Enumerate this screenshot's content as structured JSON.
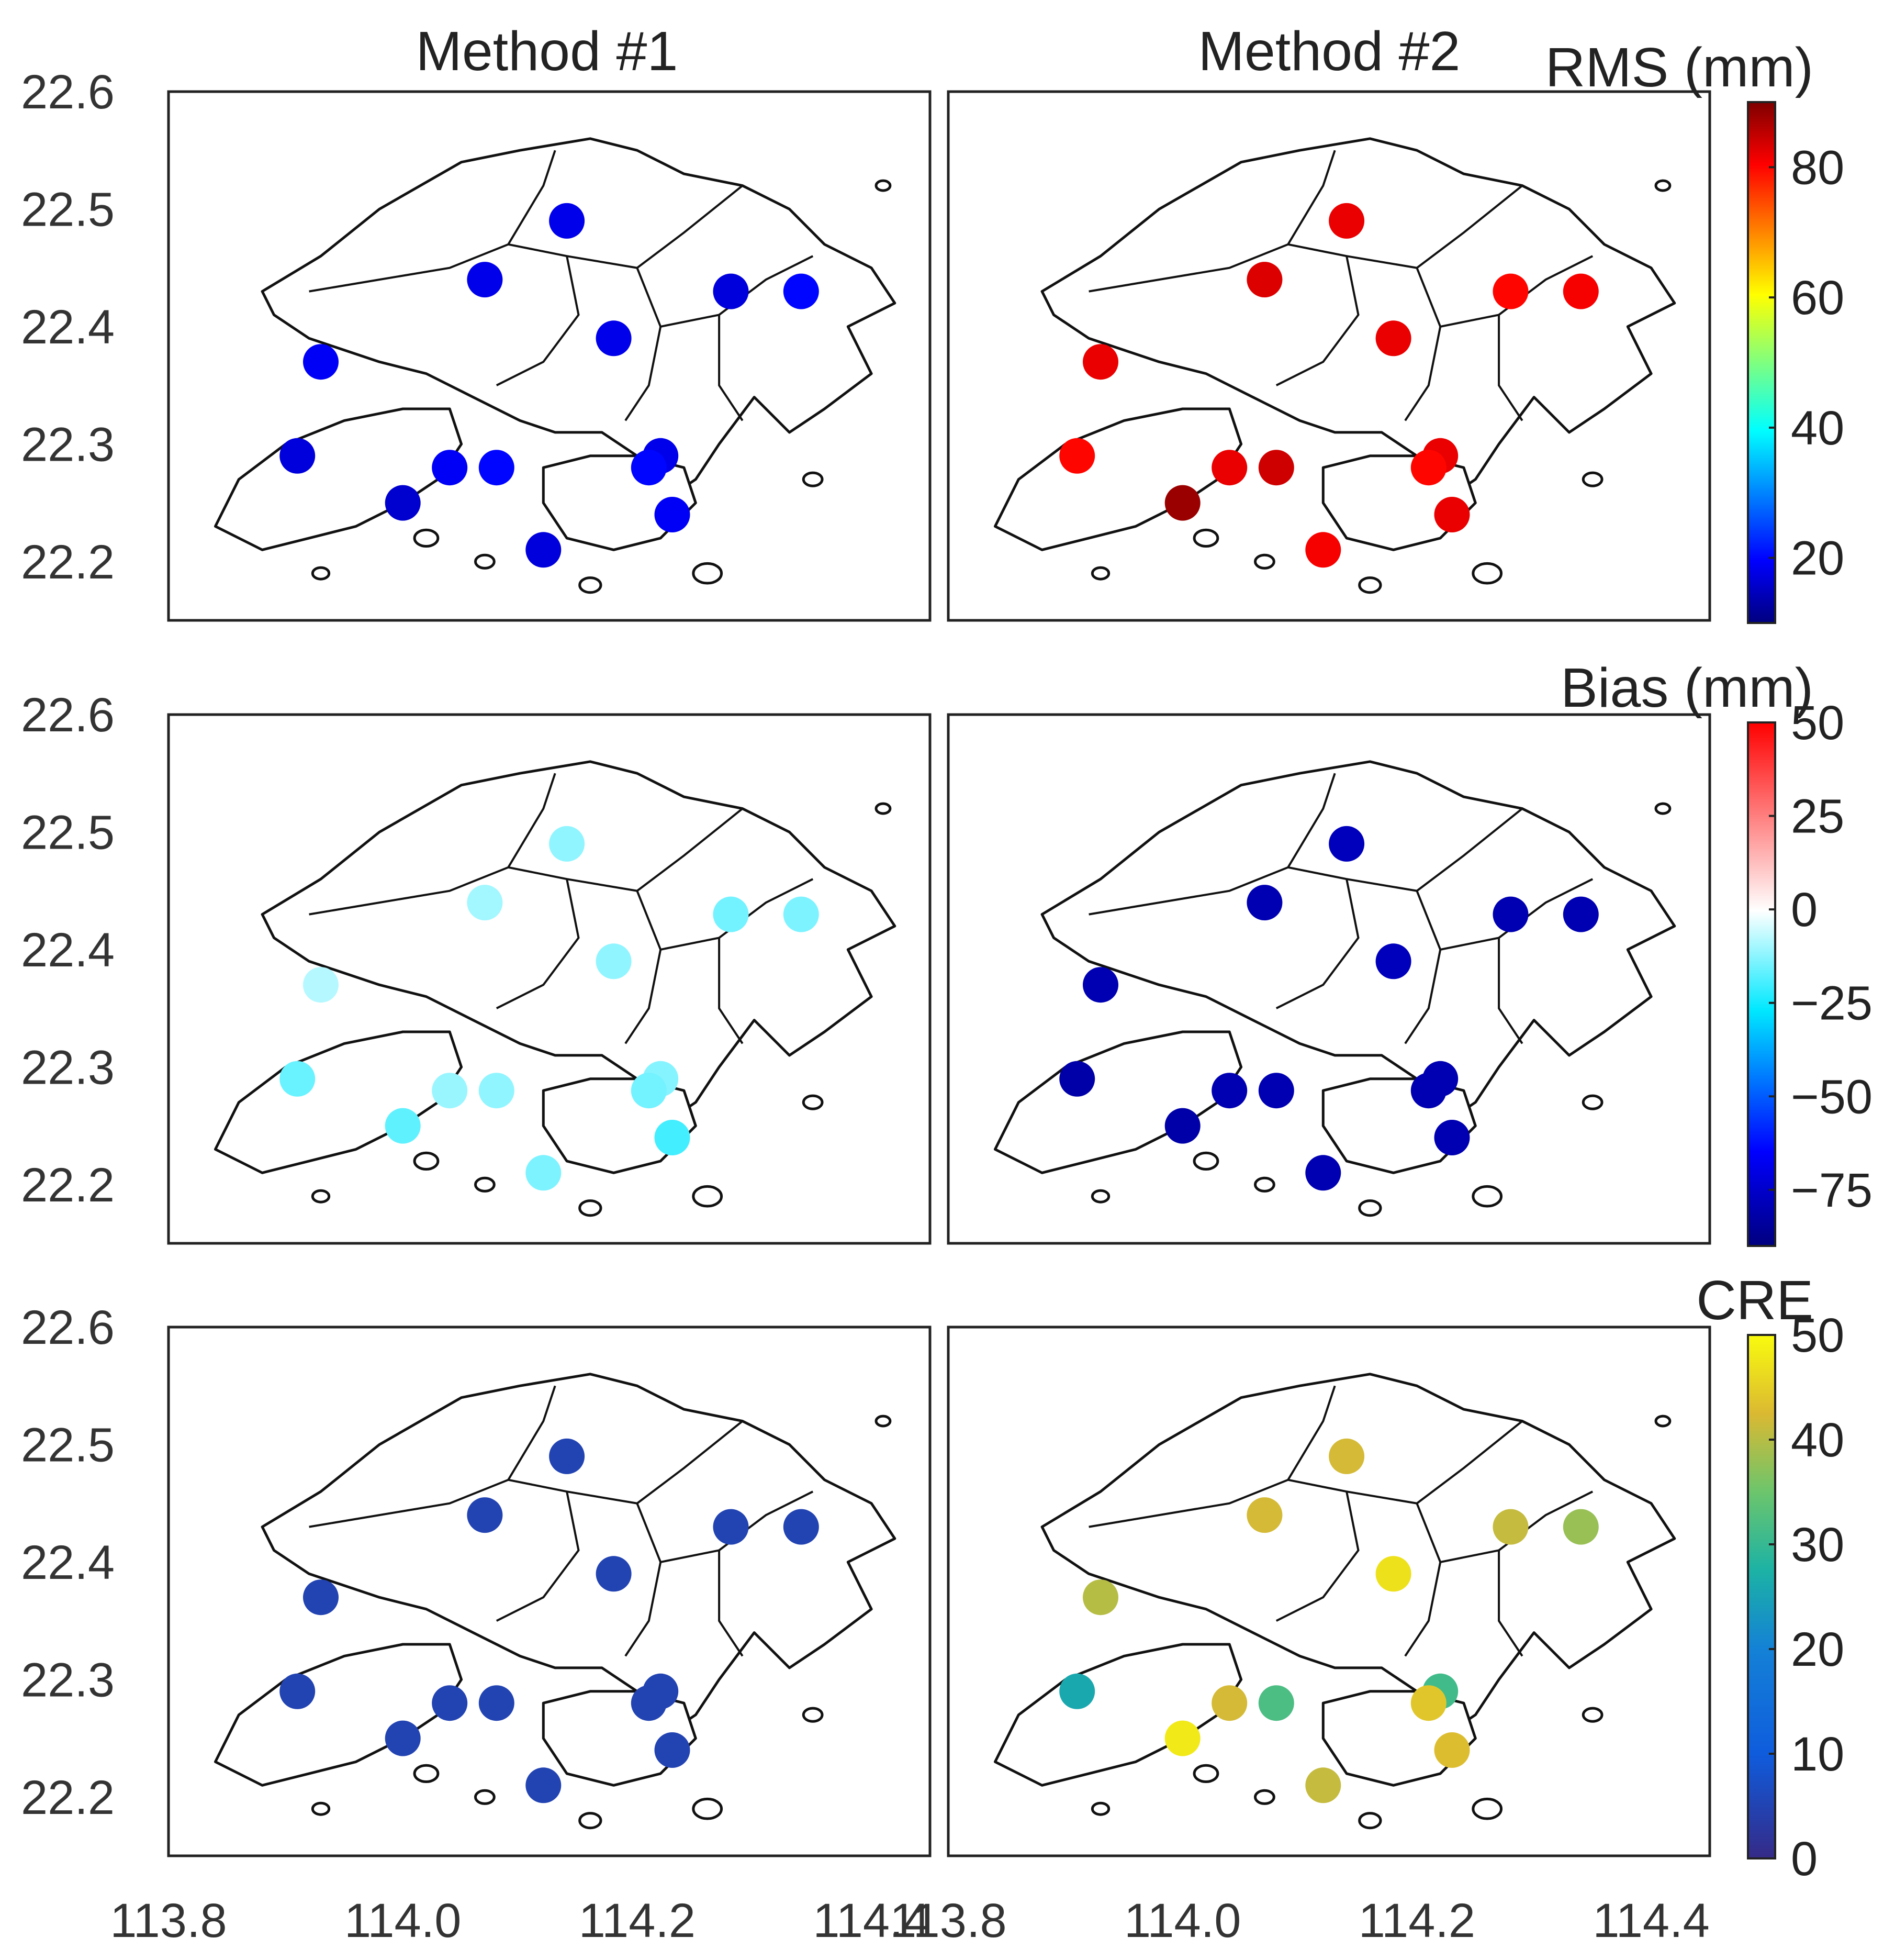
{
  "figure": {
    "column_titles": [
      "Method #1",
      "Method #2"
    ]
  },
  "chart_data": [
    {
      "type": "scatter",
      "row": 0,
      "colorbar_label": "RMS (mm)",
      "colormap": "jet",
      "clim": [
        10,
        90
      ],
      "colorbar_ticks": [
        "80",
        "60",
        "40",
        "20"
      ],
      "colorbar_tick_values": [
        80,
        60,
        40,
        20
      ],
      "xlim": [
        113.8,
        114.45
      ],
      "ylim": [
        22.15,
        22.6
      ],
      "ytick_labels": [
        "22.6",
        "22.5",
        "22.4",
        "22.3",
        "22.2"
      ],
      "series": [
        {
          "values": [
            18,
            18,
            17,
            20,
            18,
            19,
            17,
            19,
            20,
            18,
            16,
            19,
            17,
            20
          ]
        },
        {
          "values": [
            82,
            83,
            80,
            81,
            82,
            82,
            80,
            82,
            84,
            82,
            88,
            82,
            81,
            80
          ]
        }
      ]
    },
    {
      "type": "scatter",
      "row": 1,
      "colorbar_label": "Bias (mm)",
      "colormap": "coolwarm-jet",
      "clim": [
        -90,
        50
      ],
      "colorbar_ticks": [
        "50",
        "25",
        "0",
        "−25",
        "−50",
        "−75"
      ],
      "colorbar_tick_values": [
        50,
        25,
        0,
        -25,
        -50,
        -75
      ],
      "xlim": [
        113.8,
        114.45
      ],
      "ylim": [
        22.15,
        22.6
      ],
      "ytick_labels": [
        "22.6",
        "22.5",
        "22.4",
        "22.3",
        "22.2"
      ],
      "series": [
        {
          "values": [
            -12,
            -10,
            -15,
            -14,
            -12,
            -8,
            -16,
            -11,
            -12,
            -13,
            -17,
            -20,
            -14,
            -15
          ]
        },
        {
          "values": [
            -78,
            -80,
            -80,
            -80,
            -78,
            -80,
            -82,
            -80,
            -80,
            -80,
            -82,
            -80,
            -80,
            -80
          ]
        }
      ]
    },
    {
      "type": "scatter",
      "row": 2,
      "colorbar_label": "CRE",
      "colormap": "parula",
      "clim": [
        0,
        50
      ],
      "colorbar_ticks": [
        "50",
        "40",
        "30",
        "20",
        "10",
        "0"
      ],
      "colorbar_tick_values": [
        50,
        40,
        30,
        20,
        10,
        0
      ],
      "xlim": [
        113.8,
        114.45
      ],
      "ylim": [
        22.15,
        22.6
      ],
      "xtick_labels": [
        "113.8",
        "114.0",
        "114.2",
        "114.4"
      ],
      "xtick_values": [
        113.8,
        114.0,
        114.2,
        114.4
      ],
      "ytick_labels": [
        "22.6",
        "22.5",
        "22.4",
        "22.3",
        "22.2"
      ],
      "series": [
        {
          "values": [
            5,
            5,
            5,
            5,
            5,
            5,
            5,
            5,
            5,
            5,
            5,
            5,
            5,
            5
          ]
        },
        {
          "values": [
            42,
            42,
            41,
            38,
            47,
            40,
            26,
            42,
            32,
            31,
            48,
            43,
            41,
            44
          ]
        }
      ]
    }
  ],
  "stations": {
    "lon": [
      114.14,
      114.07,
      114.28,
      114.34,
      114.18,
      113.93,
      113.91,
      114.04,
      114.08,
      114.22,
      114.0,
      114.23,
      114.12,
      114.21
    ],
    "lat": [
      22.49,
      22.44,
      22.43,
      22.43,
      22.39,
      22.37,
      22.29,
      22.28,
      22.28,
      22.29,
      22.25,
      22.24,
      22.21,
      22.28
    ]
  }
}
